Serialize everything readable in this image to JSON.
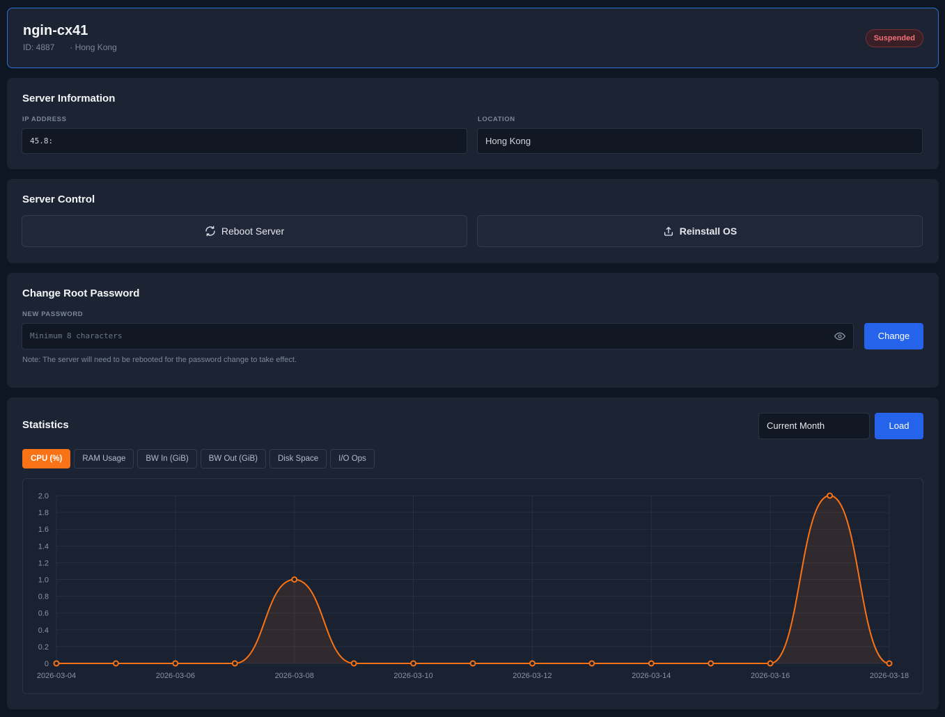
{
  "header": {
    "server_name": "ngin-cx41",
    "id_label": "ID: 4887",
    "location_meta": "· Hong Kong",
    "status": "Suspended"
  },
  "server_info": {
    "title": "Server Information",
    "ip_label": "IP ADDRESS",
    "ip_value": "45.8:",
    "location_label": "LOCATION",
    "location_value": "Hong Kong"
  },
  "server_control": {
    "title": "Server Control",
    "reboot_label": "Reboot Server",
    "reinstall_label": "Reinstall OS",
    "reboot_icon": "refresh-icon",
    "reinstall_icon": "upload-icon"
  },
  "password": {
    "title": "Change Root Password",
    "field_label": "NEW PASSWORD",
    "placeholder": "Minimum 8 characters",
    "change_label": "Change",
    "note": "Note: The server will need to be rebooted for the password change to take effect."
  },
  "statistics": {
    "title": "Statistics",
    "period": "Current Month",
    "load_label": "Load",
    "tabs": [
      "CPU (%)",
      "RAM Usage",
      "BW In (GiB)",
      "BW Out (GiB)",
      "Disk Space",
      "I/O Ops"
    ],
    "active_tab": 0
  },
  "colors": {
    "accent": "#2563eb",
    "series": "#f97316",
    "danger": "#f07178"
  },
  "chart_data": {
    "type": "line",
    "x": [
      "2026-03-04",
      "2026-03-05",
      "2026-03-06",
      "2026-03-07",
      "2026-03-08",
      "2026-03-09",
      "2026-03-10",
      "2026-03-11",
      "2026-03-12",
      "2026-03-13",
      "2026-03-14",
      "2026-03-15",
      "2026-03-16",
      "2026-03-17",
      "2026-03-18"
    ],
    "x_tick_labels": [
      "2026-03-04",
      "2026-03-06",
      "2026-03-08",
      "2026-03-10",
      "2026-03-12",
      "2026-03-14",
      "2026-03-16",
      "2026-03-18"
    ],
    "series": [
      {
        "values": [
          0,
          0,
          0,
          0,
          1.0,
          0,
          0,
          0,
          0,
          0,
          0,
          0,
          0,
          2.0,
          0
        ]
      }
    ],
    "ylim": [
      0,
      2.0
    ],
    "y_ticks": [
      "0",
      "0.2",
      "0.4",
      "0.6",
      "0.8",
      "1.0",
      "1.2",
      "1.4",
      "1.6",
      "1.8",
      "2.0"
    ],
    "smooth": true,
    "area_fill": true,
    "grid": true,
    "legend": "none"
  }
}
